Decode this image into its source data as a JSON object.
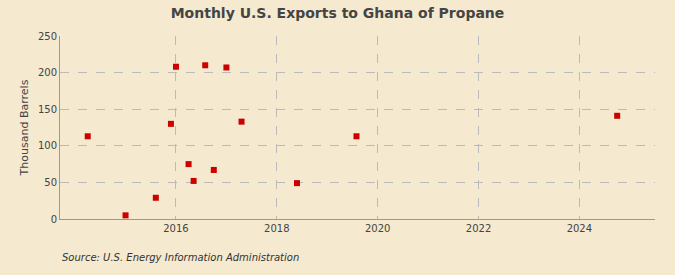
{
  "chart_data": {
    "type": "scatter",
    "title": "Monthly U.S. Exports to Ghana of Propane",
    "ylabel": "Thousand Barrels",
    "annotations": [
      "Source: U.S. Energy Information Administration"
    ],
    "x": [
      2014.25,
      2015.0,
      2015.6,
      2015.9,
      2016.0,
      2016.25,
      2016.35,
      2016.58,
      2016.75,
      2017.0,
      2017.3,
      2018.4,
      2019.58,
      2024.75
    ],
    "values": [
      113,
      5,
      29,
      130,
      208,
      75,
      52,
      210,
      67,
      207,
      133,
      49,
      113,
      141
    ],
    "color": "#cc0000",
    "marker": "square",
    "xlim": [
      2013.7,
      2025.5
    ],
    "xticks": [
      2016,
      2018,
      2020,
      2022,
      2024
    ],
    "ylim": [
      0,
      250
    ],
    "yticks": [
      0,
      50,
      100,
      150,
      200,
      250
    ],
    "grid": true
  }
}
